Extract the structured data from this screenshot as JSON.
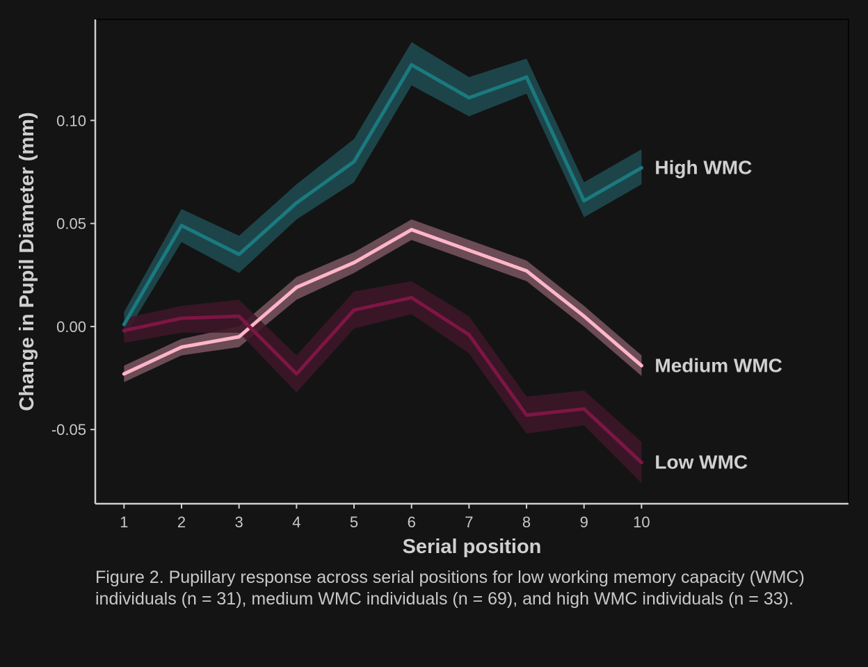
{
  "chart_data": {
    "type": "line",
    "title": "",
    "xlabel": "Serial position",
    "ylabel": "Change in Pupil Diameter (mm)",
    "x": [
      1,
      2,
      3,
      4,
      5,
      6,
      7,
      8,
      9,
      10
    ],
    "xlim": [
      0.5,
      13.6
    ],
    "ylim": [
      -0.086,
      0.149
    ],
    "y_ticks": [
      -0.05,
      0.0,
      0.05,
      0.1
    ],
    "y_tick_labels": [
      "-0.05",
      "0.00",
      "0.05",
      "0.10"
    ],
    "x_tick_labels": [
      "1",
      "2",
      "3",
      "4",
      "5",
      "6",
      "7",
      "8",
      "9",
      "10"
    ],
    "grid": false,
    "legend": "direct labels at line ends",
    "series": [
      {
        "name": "High WMC",
        "color": "#1a7a80",
        "band_color": "#1e4e52",
        "values": [
          0.001,
          0.049,
          0.035,
          0.06,
          0.08,
          0.127,
          0.111,
          0.121,
          0.061,
          0.077
        ],
        "lower": [
          -0.005,
          0.041,
          0.026,
          0.052,
          0.07,
          0.117,
          0.102,
          0.113,
          0.053,
          0.069
        ],
        "upper": [
          0.007,
          0.057,
          0.044,
          0.069,
          0.091,
          0.138,
          0.121,
          0.13,
          0.07,
          0.086
        ]
      },
      {
        "name": "Medium WMC",
        "color": "#ffb6c8",
        "band_color": "#7a5560",
        "values": [
          -0.023,
          -0.01,
          -0.005,
          0.019,
          0.031,
          0.047,
          0.037,
          0.027,
          0.005,
          -0.019
        ],
        "lower": [
          -0.027,
          -0.014,
          -0.01,
          0.013,
          0.026,
          0.042,
          0.032,
          0.022,
          0.0,
          -0.024
        ],
        "upper": [
          -0.019,
          -0.006,
          0.0,
          0.024,
          0.036,
          0.052,
          0.042,
          0.032,
          0.01,
          -0.014
        ]
      },
      {
        "name": "Low WMC",
        "color": "#7e1545",
        "band_color": "#3e1628",
        "values": [
          -0.002,
          0.004,
          0.005,
          -0.023,
          0.008,
          0.014,
          -0.004,
          -0.043,
          -0.04,
          -0.066
        ],
        "lower": [
          -0.008,
          -0.003,
          -0.003,
          -0.032,
          -0.001,
          0.006,
          -0.013,
          -0.052,
          -0.048,
          -0.076
        ],
        "upper": [
          0.004,
          0.01,
          0.013,
          -0.014,
          0.017,
          0.022,
          0.005,
          -0.034,
          -0.031,
          -0.056
        ]
      }
    ]
  },
  "caption": "Figure 2. Pupillary response across serial positions for low working memory capacity (WMC) individuals (n = 31), medium WMC individuals (n = 69), and high WMC individuals (n = 33)."
}
